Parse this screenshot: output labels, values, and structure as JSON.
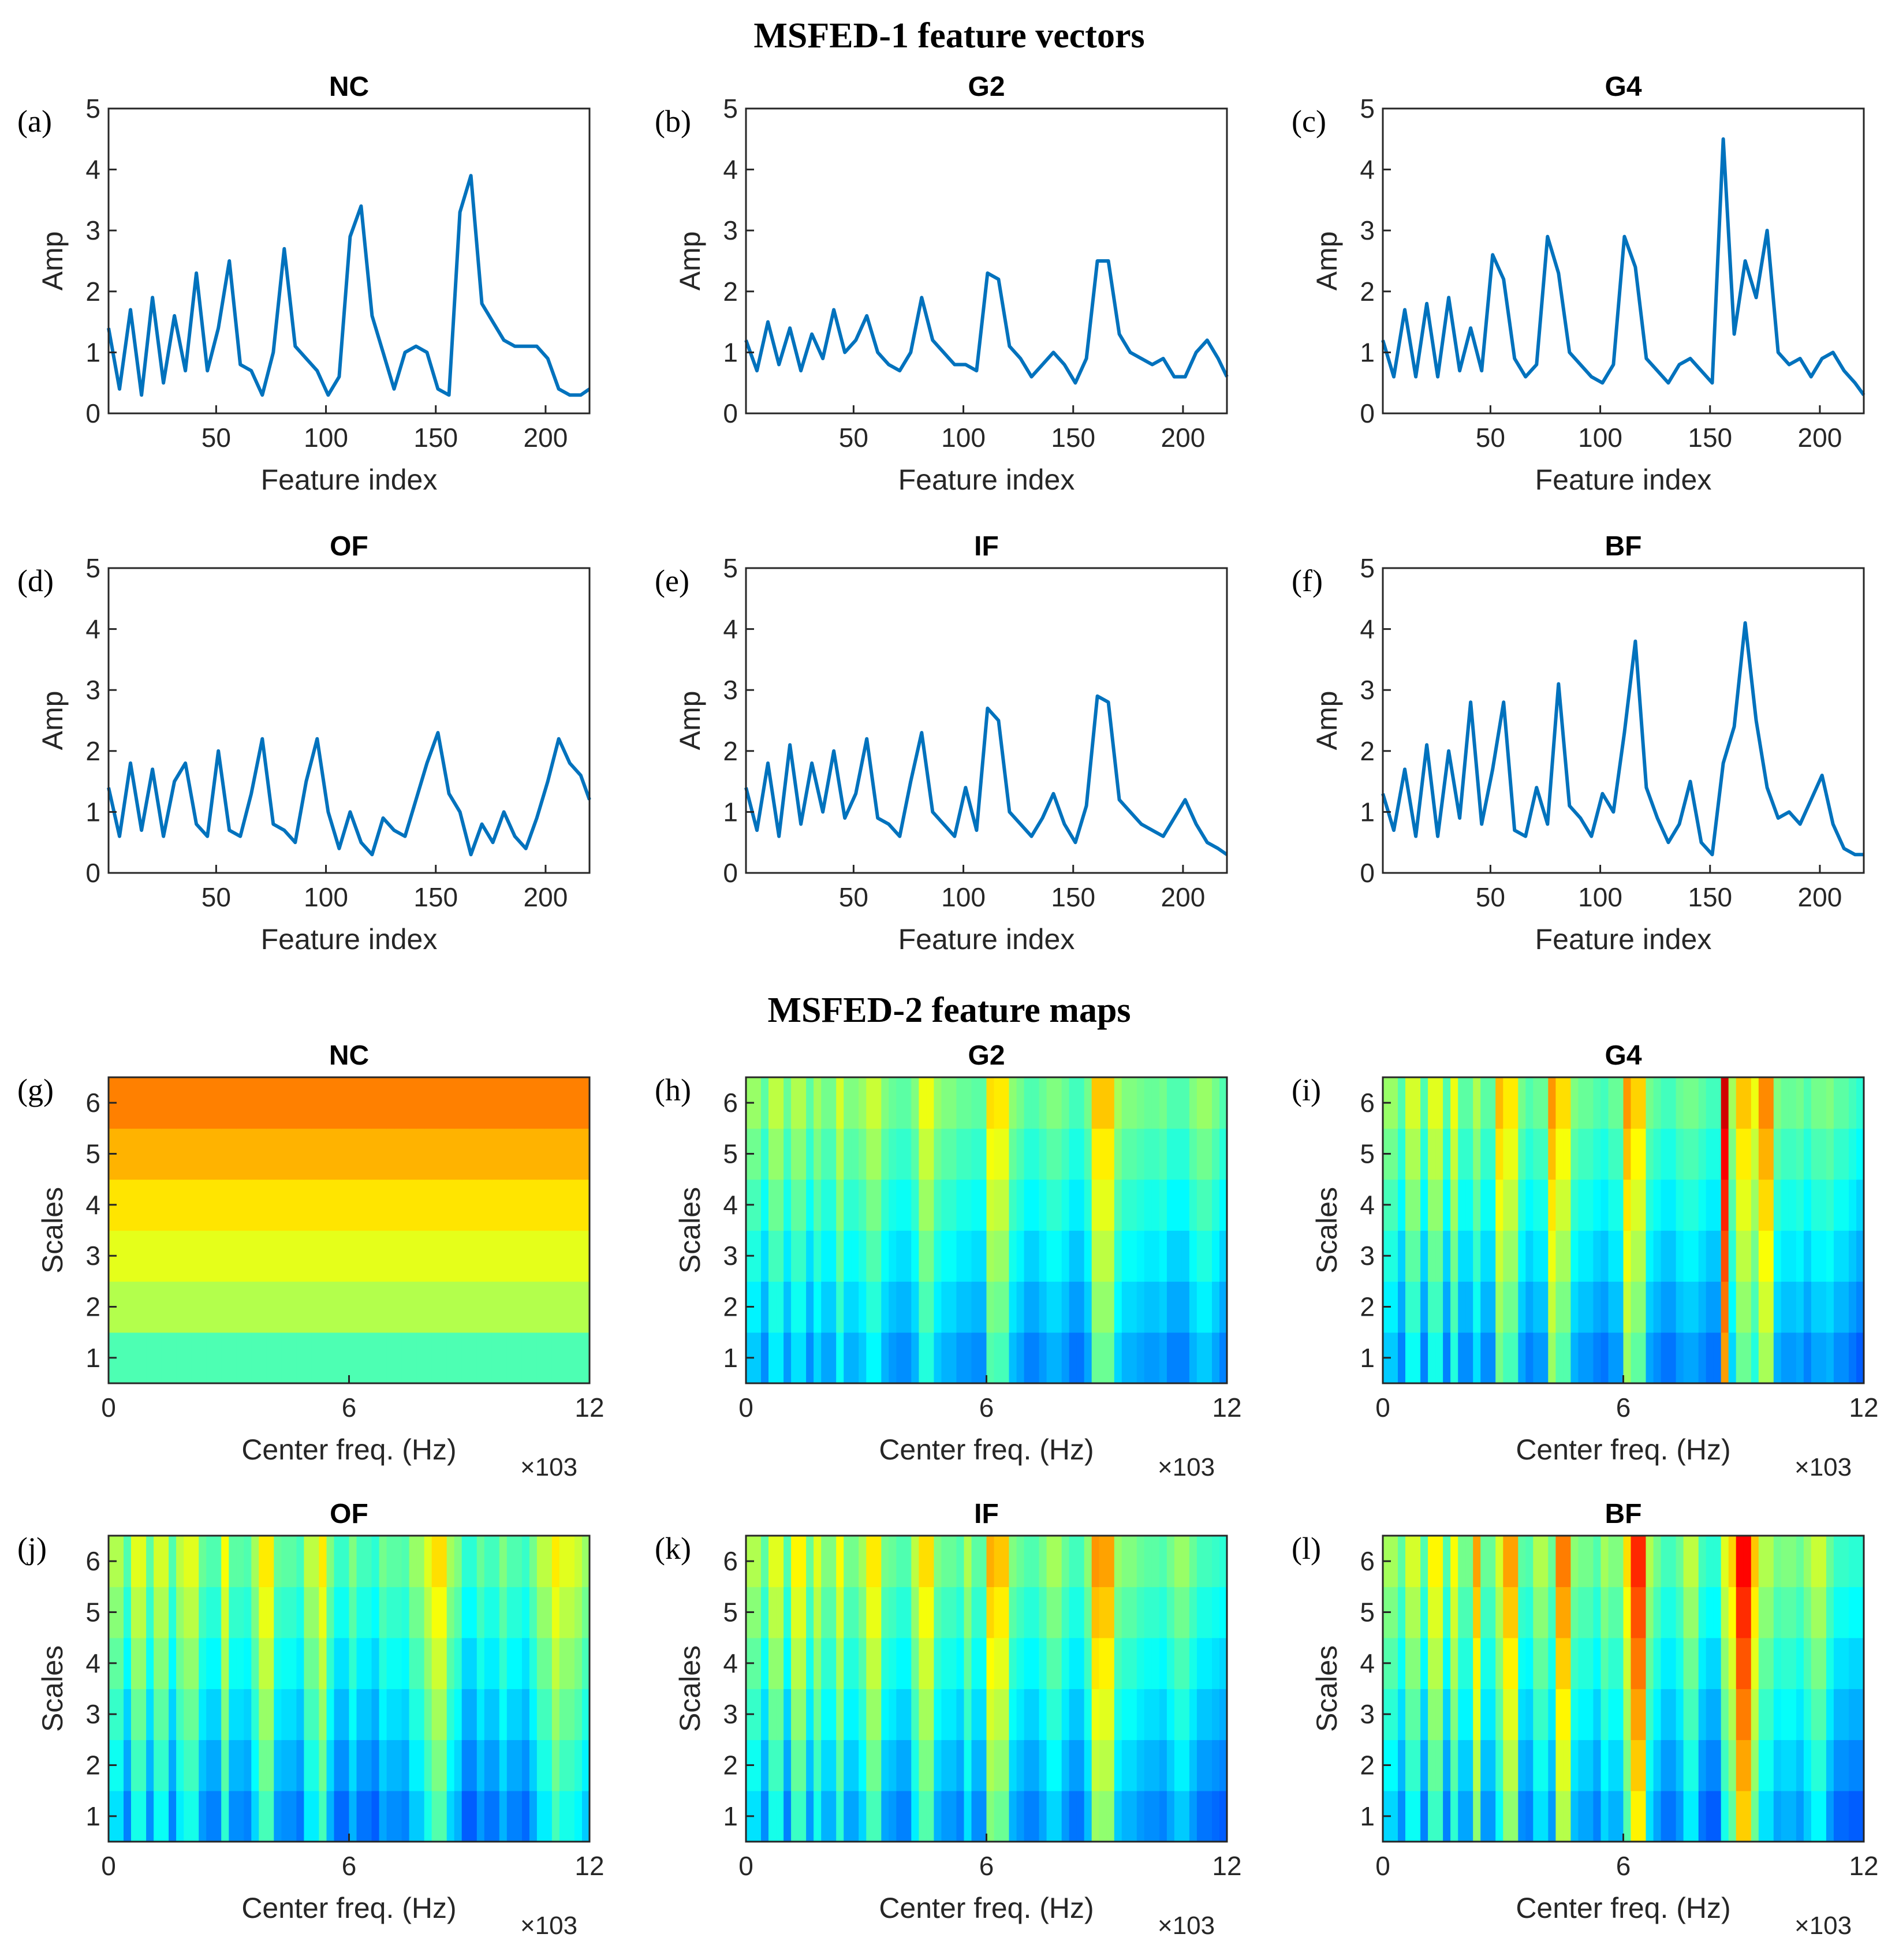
{
  "section_titles": [
    "MSFED-1 feature vectors",
    "MSFED-2 feature maps"
  ],
  "line_style": {
    "color": "#0072BD"
  },
  "chart_data": [
    {
      "panel": "(a)",
      "title": "NC",
      "type": "line",
      "xlabel": "Feature index",
      "ylabel": "Amp",
      "xlim": [
        1,
        220
      ],
      "ylim": [
        0,
        5
      ],
      "xticks": [
        50,
        100,
        150,
        200
      ],
      "yticks": [
        0,
        1,
        2,
        3,
        4,
        5
      ],
      "x": [
        1,
        6,
        11,
        16,
        21,
        26,
        31,
        36,
        41,
        46,
        51,
        56,
        61,
        66,
        71,
        76,
        81,
        86,
        91,
        96,
        101,
        106,
        111,
        116,
        121,
        126,
        131,
        136,
        141,
        146,
        151,
        156,
        161,
        166,
        171,
        176,
        181,
        186,
        191,
        196,
        201,
        206,
        211,
        216,
        220
      ],
      "values": [
        1.4,
        0.4,
        1.7,
        0.3,
        1.9,
        0.5,
        1.6,
        0.7,
        2.3,
        0.7,
        1.4,
        2.5,
        0.8,
        0.7,
        0.3,
        1.0,
        2.7,
        1.1,
        0.9,
        0.7,
        0.3,
        0.6,
        2.9,
        3.4,
        1.6,
        1.0,
        0.4,
        1.0,
        1.1,
        1.0,
        0.4,
        0.3,
        3.3,
        3.9,
        1.8,
        1.5,
        1.2,
        1.1,
        1.1,
        1.1,
        0.9,
        0.4,
        0.3,
        0.3,
        0.4
      ]
    },
    {
      "panel": "(b)",
      "title": "G2",
      "type": "line",
      "xlabel": "Feature index",
      "ylabel": "Amp",
      "xlim": [
        1,
        220
      ],
      "ylim": [
        0,
        5
      ],
      "xticks": [
        50,
        100,
        150,
        200
      ],
      "yticks": [
        0,
        1,
        2,
        3,
        4,
        5
      ],
      "x": [
        1,
        6,
        11,
        16,
        21,
        26,
        31,
        36,
        41,
        46,
        51,
        56,
        61,
        66,
        71,
        76,
        81,
        86,
        91,
        96,
        101,
        106,
        111,
        116,
        121,
        126,
        131,
        136,
        141,
        146,
        151,
        156,
        161,
        166,
        171,
        176,
        181,
        186,
        191,
        196,
        201,
        206,
        211,
        216,
        220
      ],
      "values": [
        1.2,
        0.7,
        1.5,
        0.8,
        1.4,
        0.7,
        1.3,
        0.9,
        1.7,
        1.0,
        1.2,
        1.6,
        1.0,
        0.8,
        0.7,
        1.0,
        1.9,
        1.2,
        1.0,
        0.8,
        0.8,
        0.7,
        2.3,
        2.2,
        1.1,
        0.9,
        0.6,
        0.8,
        1.0,
        0.8,
        0.5,
        0.9,
        2.5,
        2.5,
        1.3,
        1.0,
        0.9,
        0.8,
        0.9,
        0.6,
        0.6,
        1.0,
        1.2,
        0.9,
        0.6
      ]
    },
    {
      "panel": "(c)",
      "title": "G4",
      "type": "line",
      "xlabel": "Feature index",
      "ylabel": "Amp",
      "xlim": [
        1,
        220
      ],
      "ylim": [
        0,
        5
      ],
      "xticks": [
        50,
        100,
        150,
        200
      ],
      "yticks": [
        0,
        1,
        2,
        3,
        4,
        5
      ],
      "x": [
        1,
        6,
        11,
        16,
        21,
        26,
        31,
        36,
        41,
        46,
        51,
        56,
        61,
        66,
        71,
        76,
        81,
        86,
        91,
        96,
        101,
        106,
        111,
        116,
        121,
        126,
        131,
        136,
        141,
        146,
        151,
        156,
        161,
        166,
        171,
        176,
        181,
        186,
        191,
        196,
        201,
        206,
        211,
        216,
        220
      ],
      "values": [
        1.2,
        0.6,
        1.7,
        0.6,
        1.8,
        0.6,
        1.9,
        0.7,
        1.4,
        0.7,
        2.6,
        2.2,
        0.9,
        0.6,
        0.8,
        2.9,
        2.3,
        1.0,
        0.8,
        0.6,
        0.5,
        0.8,
        2.9,
        2.4,
        0.9,
        0.7,
        0.5,
        0.8,
        0.9,
        0.7,
        0.5,
        4.5,
        1.3,
        2.5,
        1.9,
        3.0,
        1.0,
        0.8,
        0.9,
        0.6,
        0.9,
        1.0,
        0.7,
        0.5,
        0.3
      ]
    },
    {
      "panel": "(d)",
      "title": "OF",
      "type": "line",
      "xlabel": "Feature index",
      "ylabel": "Amp",
      "xlim": [
        1,
        220
      ],
      "ylim": [
        0,
        5
      ],
      "xticks": [
        50,
        100,
        150,
        200
      ],
      "yticks": [
        0,
        1,
        2,
        3,
        4,
        5
      ],
      "x": [
        1,
        6,
        11,
        16,
        21,
        26,
        31,
        36,
        41,
        46,
        51,
        56,
        61,
        66,
        71,
        76,
        81,
        86,
        91,
        96,
        101,
        106,
        111,
        116,
        121,
        126,
        131,
        136,
        141,
        146,
        151,
        156,
        161,
        166,
        171,
        176,
        181,
        186,
        191,
        196,
        201,
        206,
        211,
        216,
        220
      ],
      "values": [
        1.4,
        0.6,
        1.8,
        0.7,
        1.7,
        0.6,
        1.5,
        1.8,
        0.8,
        0.6,
        2.0,
        0.7,
        0.6,
        1.3,
        2.2,
        0.8,
        0.7,
        0.5,
        1.5,
        2.2,
        1.0,
        0.4,
        1.0,
        0.5,
        0.3,
        0.9,
        0.7,
        0.6,
        1.2,
        1.8,
        2.3,
        1.3,
        1.0,
        0.3,
        0.8,
        0.5,
        1.0,
        0.6,
        0.4,
        0.9,
        1.5,
        2.2,
        1.8,
        1.6,
        1.2
      ]
    },
    {
      "panel": "(e)",
      "title": "IF",
      "type": "line",
      "xlabel": "Feature index",
      "ylabel": "Amp",
      "xlim": [
        1,
        220
      ],
      "ylim": [
        0,
        5
      ],
      "xticks": [
        50,
        100,
        150,
        200
      ],
      "yticks": [
        0,
        1,
        2,
        3,
        4,
        5
      ],
      "x": [
        1,
        6,
        11,
        16,
        21,
        26,
        31,
        36,
        41,
        46,
        51,
        56,
        61,
        66,
        71,
        76,
        81,
        86,
        91,
        96,
        101,
        106,
        111,
        116,
        121,
        126,
        131,
        136,
        141,
        146,
        151,
        156,
        161,
        166,
        171,
        176,
        181,
        186,
        191,
        196,
        201,
        206,
        211,
        216,
        220
      ],
      "values": [
        1.4,
        0.7,
        1.8,
        0.6,
        2.1,
        0.8,
        1.8,
        1.0,
        2.0,
        0.9,
        1.3,
        2.2,
        0.9,
        0.8,
        0.6,
        1.5,
        2.3,
        1.0,
        0.8,
        0.6,
        1.4,
        0.7,
        2.7,
        2.5,
        1.0,
        0.8,
        0.6,
        0.9,
        1.3,
        0.8,
        0.5,
        1.1,
        2.9,
        2.8,
        1.2,
        1.0,
        0.8,
        0.7,
        0.6,
        0.9,
        1.2,
        0.8,
        0.5,
        0.4,
        0.3
      ]
    },
    {
      "panel": "(f)",
      "title": "BF",
      "type": "line",
      "xlabel": "Feature index",
      "ylabel": "Amp",
      "xlim": [
        1,
        220
      ],
      "ylim": [
        0,
        5
      ],
      "xticks": [
        50,
        100,
        150,
        200
      ],
      "yticks": [
        0,
        1,
        2,
        3,
        4,
        5
      ],
      "x": [
        1,
        6,
        11,
        16,
        21,
        26,
        31,
        36,
        41,
        46,
        51,
        56,
        61,
        66,
        71,
        76,
        81,
        86,
        91,
        96,
        101,
        106,
        111,
        116,
        121,
        126,
        131,
        136,
        141,
        146,
        151,
        156,
        161,
        166,
        171,
        176,
        181,
        186,
        191,
        196,
        201,
        206,
        211,
        216,
        220
      ],
      "values": [
        1.3,
        0.7,
        1.7,
        0.6,
        2.1,
        0.6,
        2.0,
        0.9,
        2.8,
        0.8,
        1.7,
        2.8,
        0.7,
        0.6,
        1.4,
        0.8,
        3.1,
        1.1,
        0.9,
        0.6,
        1.3,
        1.0,
        2.3,
        3.8,
        1.4,
        0.9,
        0.5,
        0.8,
        1.5,
        0.5,
        0.3,
        1.8,
        2.4,
        4.1,
        2.5,
        1.4,
        0.9,
        1.0,
        0.8,
        1.2,
        1.6,
        0.8,
        0.4,
        0.3,
        0.3
      ]
    },
    {
      "panel": "(g)",
      "title": "NC",
      "type": "heatmap",
      "xlabel": "Center freq. (Hz)",
      "ylabel": "Scales",
      "x_exponent": "3",
      "xlim": [
        0,
        12
      ],
      "ylim": [
        0.5,
        6.5
      ],
      "xticks": [
        0,
        6,
        12
      ],
      "yticks": [
        1,
        2,
        3,
        4,
        5,
        6
      ],
      "levels": [
        [
          0.45,
          0.45,
          0.45,
          0.45,
          0.45,
          0.45,
          0.45,
          0.45,
          0.45,
          0.45,
          0.45,
          0.45,
          0.45,
          0.45,
          0.45,
          0.45,
          0.45,
          0.45,
          0.45,
          0.45,
          0.45,
          0.45,
          0.45,
          0.45,
          0.45,
          0.45,
          0.45,
          0.45,
          0.45,
          0.45,
          0.45,
          0.45,
          0.45,
          0.45,
          0.45,
          0.45,
          0.45,
          0.45,
          0.45,
          0.45,
          0.45,
          0.45,
          0.45,
          0.45,
          0.45,
          0.45,
          0.45,
          0.45,
          0.45,
          0.45,
          0.45,
          0.45,
          0.45,
          0.45,
          0.45,
          0.45,
          0.45,
          0.45,
          0.45,
          0.45,
          0.45,
          0.45,
          0.45,
          0.45
        ],
        [
          0.55,
          0.55,
          0.55,
          0.55,
          0.55,
          0.55,
          0.55,
          0.55,
          0.55,
          0.55,
          0.55,
          0.55,
          0.55,
          0.55,
          0.55,
          0.55,
          0.55,
          0.55,
          0.55,
          0.55,
          0.55,
          0.55,
          0.55,
          0.55,
          0.55,
          0.55,
          0.55,
          0.55,
          0.55,
          0.55,
          0.55,
          0.55,
          0.55,
          0.55,
          0.55,
          0.55,
          0.55,
          0.55,
          0.55,
          0.55,
          0.55,
          0.55,
          0.55,
          0.55,
          0.55,
          0.55,
          0.55,
          0.55,
          0.55,
          0.55,
          0.55,
          0.55,
          0.55,
          0.55,
          0.55,
          0.55,
          0.55,
          0.55,
          0.55,
          0.55,
          0.55,
          0.55,
          0.55,
          0.55
        ],
        [
          0.6,
          0.6,
          0.6,
          0.6,
          0.6,
          0.6,
          0.6,
          0.6,
          0.6,
          0.6,
          0.6,
          0.6,
          0.6,
          0.6,
          0.6,
          0.6,
          0.6,
          0.6,
          0.6,
          0.6,
          0.6,
          0.6,
          0.6,
          0.6,
          0.6,
          0.6,
          0.6,
          0.6,
          0.6,
          0.6,
          0.6,
          0.6,
          0.6,
          0.6,
          0.6,
          0.6,
          0.6,
          0.6,
          0.6,
          0.6,
          0.6,
          0.6,
          0.6,
          0.6,
          0.6,
          0.6,
          0.6,
          0.6,
          0.6,
          0.6,
          0.6,
          0.6,
          0.6,
          0.6,
          0.6,
          0.6,
          0.6,
          0.6,
          0.6,
          0.6,
          0.6,
          0.6,
          0.6,
          0.6
        ],
        [
          0.65,
          0.65,
          0.65,
          0.65,
          0.65,
          0.65,
          0.65,
          0.65,
          0.65,
          0.65,
          0.65,
          0.65,
          0.65,
          0.65,
          0.65,
          0.65,
          0.65,
          0.65,
          0.65,
          0.65,
          0.65,
          0.65,
          0.65,
          0.65,
          0.65,
          0.65,
          0.65,
          0.65,
          0.65,
          0.65,
          0.65,
          0.65,
          0.65,
          0.65,
          0.65,
          0.65,
          0.65,
          0.65,
          0.65,
          0.65,
          0.65,
          0.65,
          0.65,
          0.65,
          0.65,
          0.65,
          0.65,
          0.65,
          0.65,
          0.65,
          0.65,
          0.65,
          0.65,
          0.65,
          0.65,
          0.65,
          0.65,
          0.65,
          0.65,
          0.65,
          0.65,
          0.65,
          0.65,
          0.65
        ],
        [
          0.7,
          0.7,
          0.7,
          0.7,
          0.7,
          0.7,
          0.7,
          0.7,
          0.7,
          0.7,
          0.7,
          0.7,
          0.7,
          0.7,
          0.7,
          0.7,
          0.7,
          0.7,
          0.7,
          0.7,
          0.7,
          0.7,
          0.7,
          0.7,
          0.7,
          0.7,
          0.7,
          0.7,
          0.7,
          0.7,
          0.7,
          0.7,
          0.7,
          0.7,
          0.7,
          0.7,
          0.7,
          0.7,
          0.7,
          0.7,
          0.7,
          0.7,
          0.7,
          0.7,
          0.7,
          0.7,
          0.7,
          0.7,
          0.7,
          0.7,
          0.7,
          0.7,
          0.7,
          0.7,
          0.7,
          0.7,
          0.7,
          0.7,
          0.7,
          0.7,
          0.7,
          0.7,
          0.7,
          0.7
        ],
        [
          0.75,
          0.75,
          0.75,
          0.75,
          0.75,
          0.75,
          0.75,
          0.75,
          0.75,
          0.75,
          0.75,
          0.75,
          0.75,
          0.75,
          0.75,
          0.75,
          0.75,
          0.75,
          0.75,
          0.75,
          0.75,
          0.75,
          0.75,
          0.75,
          0.75,
          0.75,
          0.75,
          0.75,
          0.75,
          0.75,
          0.75,
          0.75,
          0.75,
          0.75,
          0.75,
          0.75,
          0.75,
          0.75,
          0.75,
          0.75,
          0.75,
          0.75,
          0.75,
          0.75,
          0.75,
          0.75,
          0.75,
          0.75,
          0.75,
          0.75,
          0.75,
          0.75,
          0.75,
          0.75,
          0.75,
          0.75,
          0.75,
          0.75,
          0.75,
          0.75,
          0.75,
          0.75,
          0.75,
          0.75
        ]
      ]
    },
    {
      "panel": "(h)",
      "title": "G2",
      "type": "heatmap",
      "xlabel": "Center freq. (Hz)",
      "ylabel": "Scales",
      "x_exponent": "3",
      "xlim": [
        0,
        12
      ],
      "ylim": [
        0.5,
        6.5
      ],
      "xticks": [
        0,
        6,
        12
      ],
      "yticks": [
        1,
        2,
        3,
        4,
        5,
        6
      ]
    },
    {
      "panel": "(i)",
      "title": "G4",
      "type": "heatmap",
      "xlabel": "Center freq. (Hz)",
      "ylabel": "Scales",
      "x_exponent": "3",
      "xlim": [
        0,
        12
      ],
      "ylim": [
        0.5,
        6.5
      ],
      "xticks": [
        0,
        6,
        12
      ],
      "yticks": [
        1,
        2,
        3,
        4,
        5,
        6
      ]
    },
    {
      "panel": "(j)",
      "title": "OF",
      "type": "heatmap",
      "xlabel": "Center freq. (Hz)",
      "ylabel": "Scales",
      "x_exponent": "3",
      "xlim": [
        0,
        12
      ],
      "ylim": [
        0.5,
        6.5
      ],
      "xticks": [
        0,
        6,
        12
      ],
      "yticks": [
        1,
        2,
        3,
        4,
        5,
        6
      ]
    },
    {
      "panel": "(k)",
      "title": "IF",
      "type": "heatmap",
      "xlabel": "Center freq. (Hz)",
      "ylabel": "Scales",
      "x_exponent": "3",
      "xlim": [
        0,
        12
      ],
      "ylim": [
        0.5,
        6.5
      ],
      "xticks": [
        0,
        6,
        12
      ],
      "yticks": [
        1,
        2,
        3,
        4,
        5,
        6
      ]
    },
    {
      "panel": "(l)",
      "title": "BF",
      "type": "heatmap",
      "xlabel": "Center freq. (Hz)",
      "ylabel": "Scales",
      "x_exponent": "3",
      "xlim": [
        0,
        12
      ],
      "ylim": [
        0.5,
        6.5
      ],
      "xticks": [
        0,
        6,
        12
      ],
      "yticks": [
        1,
        2,
        3,
        4,
        5,
        6
      ]
    }
  ]
}
